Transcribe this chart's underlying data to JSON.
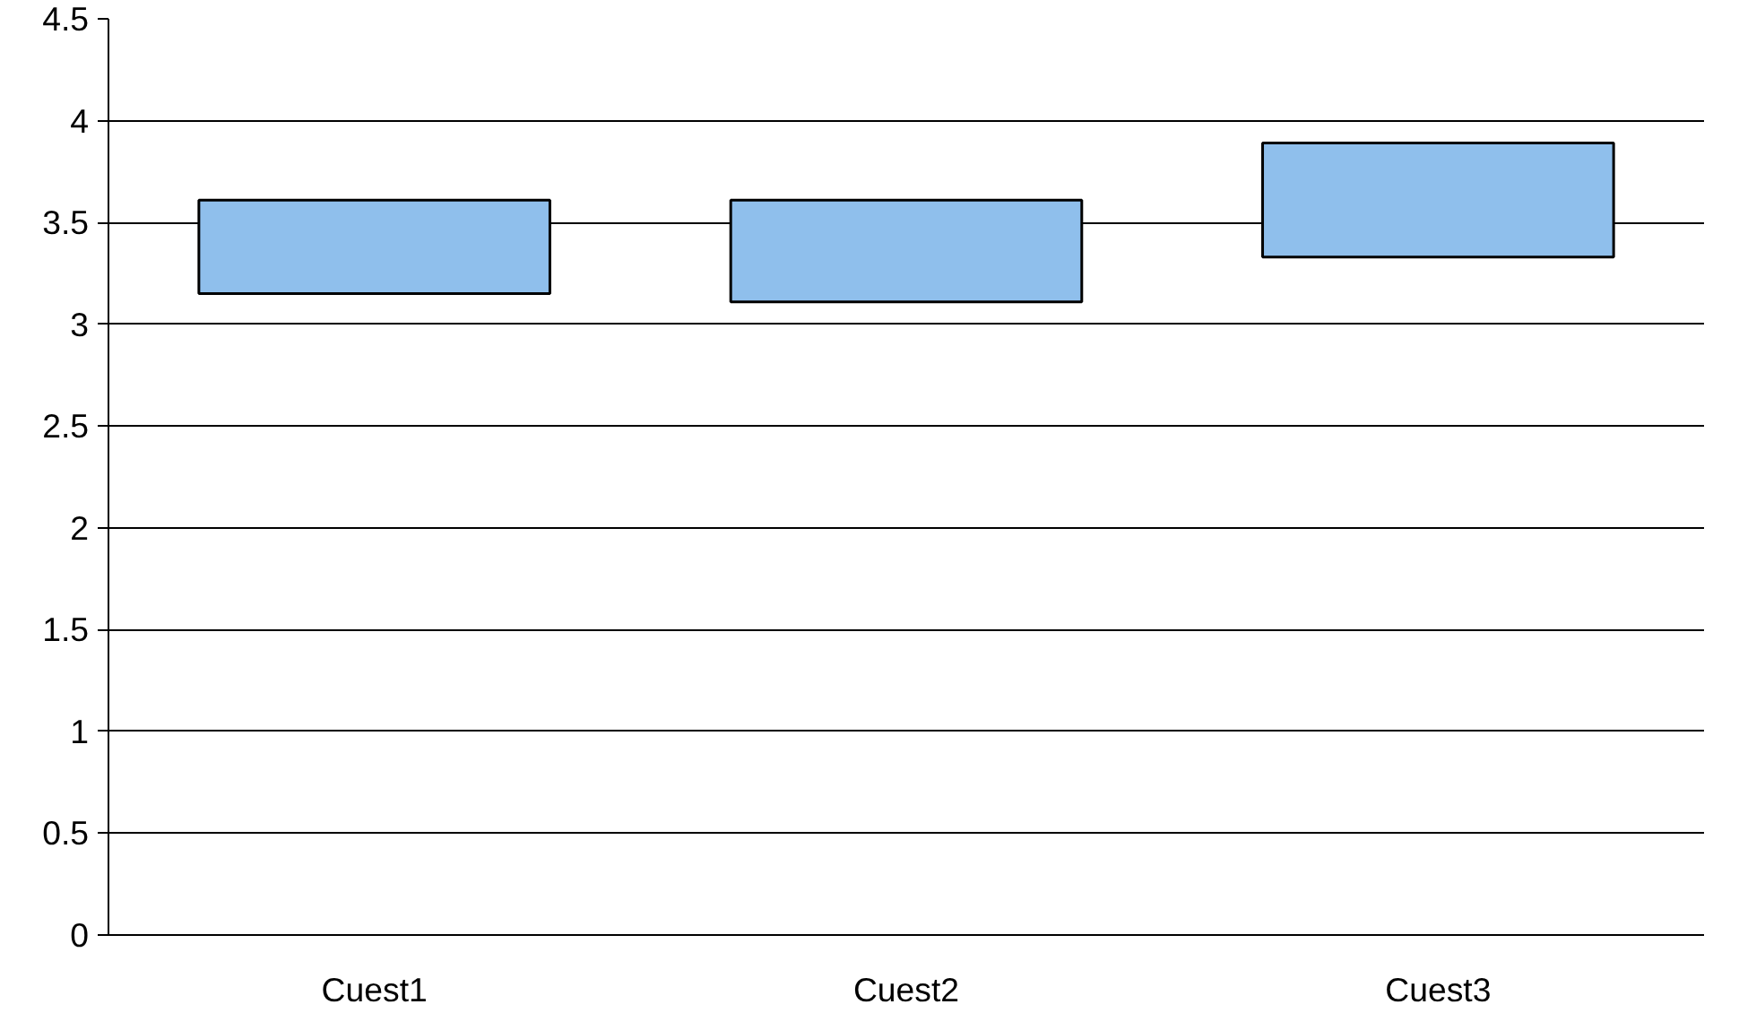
{
  "chart_data": {
    "type": "bar",
    "categories": [
      "Cuest1",
      "Cuest2",
      "Cuest3"
    ],
    "base": [
      3.15,
      3.11,
      3.33
    ],
    "values": [
      0.46,
      0.5,
      0.56
    ],
    "color": "#8fbfec",
    "ylim": [
      0,
      4.5
    ],
    "yticks": [
      0,
      0.5,
      1,
      1.5,
      2,
      2.5,
      3,
      3.5,
      4,
      4.5
    ],
    "grid": "y"
  }
}
